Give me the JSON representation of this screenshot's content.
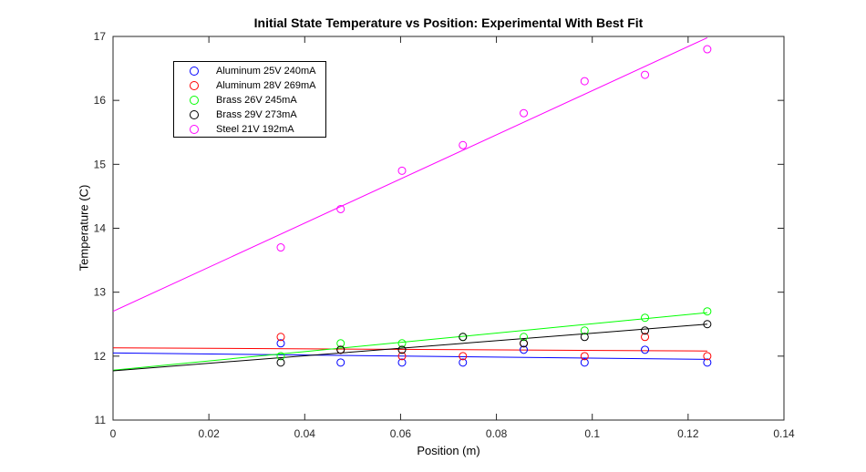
{
  "chart_data": {
    "type": "scatter",
    "title": "Initial State Temperature vs Position: Experimental With Best Fit",
    "xlabel": "Position (m)",
    "ylabel": "Temperature (C)",
    "xlim": [
      0,
      0.14
    ],
    "ylim": [
      11,
      17
    ],
    "x_ticks": [
      0,
      0.02,
      0.04,
      0.06,
      0.08,
      0.1,
      0.12,
      0.14
    ],
    "x_tick_labels": [
      "0",
      "0.02",
      "0.04",
      "0.06",
      "0.08",
      "0.1",
      "0.12",
      "0.14"
    ],
    "y_ticks": [
      11,
      12,
      13,
      14,
      15,
      16,
      17
    ],
    "y_tick_labels": [
      "11",
      "12",
      "13",
      "14",
      "15",
      "16",
      "17"
    ],
    "grid": false,
    "legend_position": "top-left",
    "x": [
      0.035,
      0.0475,
      0.0603,
      0.073,
      0.0857,
      0.0984,
      0.111,
      0.124
    ],
    "series": [
      {
        "name": "Aluminum 25V 240mA",
        "color": "#0000ff",
        "marker": "circle-open",
        "y": [
          12.2,
          11.9,
          11.9,
          11.9,
          12.1,
          11.9,
          12.1,
          11.9
        ],
        "fit": {
          "x": [
            0,
            0.124
          ],
          "y": [
            12.05,
            11.95
          ]
        }
      },
      {
        "name": "Aluminum 28V 269mA",
        "color": "#ff0000",
        "marker": "circle-open",
        "y": [
          12.3,
          12.1,
          12.0,
          12.0,
          12.2,
          12.0,
          12.3,
          12.0
        ],
        "fit": {
          "x": [
            0,
            0.124
          ],
          "y": [
            12.13,
            12.08
          ]
        }
      },
      {
        "name": "Brass 26V 245mA",
        "color": "#00ff00",
        "marker": "circle-open",
        "y": [
          12.0,
          12.2,
          12.2,
          12.3,
          12.3,
          12.4,
          12.6,
          12.7
        ],
        "fit": {
          "x": [
            0,
            0.124
          ],
          "y": [
            11.78,
            12.68
          ]
        }
      },
      {
        "name": "Brass 29V 273mA",
        "color": "#000000",
        "marker": "circle-open",
        "y": [
          11.9,
          12.1,
          12.1,
          12.3,
          12.2,
          12.3,
          12.4,
          12.5
        ],
        "fit": {
          "x": [
            0,
            0.124
          ],
          "y": [
            11.77,
            12.5
          ]
        }
      },
      {
        "name": "Steel 21V 192mA",
        "color": "#ff00ff",
        "marker": "circle-open",
        "y": [
          13.7,
          14.3,
          14.9,
          15.3,
          15.8,
          16.3,
          16.4,
          16.8
        ],
        "fit": {
          "x": [
            0,
            0.124
          ],
          "y": [
            12.7,
            16.98
          ]
        }
      }
    ]
  }
}
